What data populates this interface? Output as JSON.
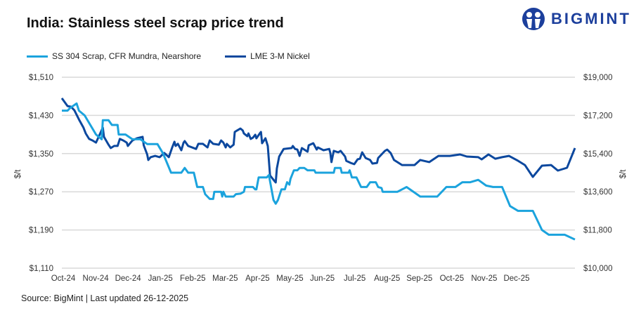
{
  "title": "India: Stainless steel scrap price trend",
  "logo": {
    "text": "BIGMINT"
  },
  "source": "Source: BigMint | Last updated 26-12-2025",
  "chart_data": {
    "type": "line",
    "title": "India: Stainless steel scrap price trend",
    "legend_position": "top-left",
    "grid": true,
    "x_range": [
      "2024-10-01",
      "2025-12-26"
    ],
    "x_tick_labels": [
      "Oct-24",
      "Nov-24",
      "Dec-24",
      "Jan-25",
      "Feb-25",
      "Mar-25",
      "Apr-25",
      "May-25",
      "Jun-25",
      "Jul-25",
      "Aug-25",
      "Sep-25",
      "Oct-25",
      "Nov-25",
      "Dec-25"
    ],
    "y_left": {
      "label": "$/t",
      "ylim": [
        1110,
        1510
      ],
      "ticks": [
        "$1,510",
        "$1,430",
        "$1,350",
        "$1,270",
        "$1,190",
        "$1,110"
      ]
    },
    "y_right": {
      "label": "$/t",
      "ylim": [
        10000,
        19000
      ],
      "ticks": [
        "$19,000",
        "$17,200",
        "$15,400",
        "$13,600",
        "$11,800",
        "$10,000"
      ]
    },
    "series": [
      {
        "name": "SS 304 Scrap, CFR Mundra, Nearshore",
        "axis": "left",
        "color": "#1ba3dd",
        "points": [
          [
            "2024-10-01",
            1440
          ],
          [
            "2024-10-06",
            1440
          ],
          [
            "2024-10-08",
            1445
          ],
          [
            "2024-10-14",
            1455
          ],
          [
            "2024-10-16",
            1440
          ],
          [
            "2024-10-21",
            1430
          ],
          [
            "2024-10-26",
            1410
          ],
          [
            "2024-10-31",
            1390
          ],
          [
            "2024-11-05",
            1380
          ],
          [
            "2024-11-06",
            1420
          ],
          [
            "2024-11-11",
            1420
          ],
          [
            "2024-11-14",
            1410
          ],
          [
            "2024-11-19",
            1410
          ],
          [
            "2024-11-20",
            1390
          ],
          [
            "2024-11-26",
            1390
          ],
          [
            "2024-12-02",
            1380
          ],
          [
            "2024-12-09",
            1380
          ],
          [
            "2024-12-15",
            1370
          ],
          [
            "2024-12-24",
            1370
          ],
          [
            "2024-12-29",
            1350
          ],
          [
            "2025-01-05",
            1310
          ],
          [
            "2025-01-14",
            1310
          ],
          [
            "2025-01-17",
            1320
          ],
          [
            "2025-01-20",
            1310
          ],
          [
            "2025-01-25",
            1310
          ],
          [
            "2025-01-28",
            1280
          ],
          [
            "2025-02-02",
            1280
          ],
          [
            "2025-02-04",
            1265
          ],
          [
            "2025-02-08",
            1255
          ],
          [
            "2025-02-11",
            1255
          ],
          [
            "2025-02-12",
            1270
          ],
          [
            "2025-02-18",
            1270
          ],
          [
            "2025-02-19",
            1260
          ],
          [
            "2025-02-20",
            1270
          ],
          [
            "2025-02-22",
            1260
          ],
          [
            "2025-03-01",
            1260
          ],
          [
            "2025-03-03",
            1265
          ],
          [
            "2025-03-07",
            1266
          ],
          [
            "2025-03-10",
            1270
          ],
          [
            "2025-03-11",
            1280
          ],
          [
            "2025-03-18",
            1280
          ],
          [
            "2025-03-20",
            1275
          ],
          [
            "2025-03-21",
            1275
          ],
          [
            "2025-03-23",
            1300
          ],
          [
            "2025-03-30",
            1300
          ],
          [
            "2025-04-01",
            1305
          ],
          [
            "2025-04-05",
            1253
          ],
          [
            "2025-04-07",
            1245
          ],
          [
            "2025-04-09",
            1253
          ],
          [
            "2025-04-12",
            1275
          ],
          [
            "2025-04-15",
            1275
          ],
          [
            "2025-04-17",
            1290
          ],
          [
            "2025-04-19",
            1285
          ],
          [
            "2025-04-20",
            1297
          ],
          [
            "2025-04-23",
            1315
          ],
          [
            "2025-04-26",
            1315
          ],
          [
            "2025-04-28",
            1320
          ],
          [
            "2025-05-02",
            1320
          ],
          [
            "2025-05-05",
            1315
          ],
          [
            "2025-05-11",
            1315
          ],
          [
            "2025-05-12",
            1310
          ],
          [
            "2025-05-28",
            1310
          ],
          [
            "2025-05-29",
            1320
          ],
          [
            "2025-06-03",
            1320
          ],
          [
            "2025-06-04",
            1310
          ],
          [
            "2025-06-10",
            1310
          ],
          [
            "2025-06-11",
            1315
          ],
          [
            "2025-06-13",
            1300
          ],
          [
            "2025-06-17",
            1300
          ],
          [
            "2025-06-21",
            1280
          ],
          [
            "2025-06-26",
            1280
          ],
          [
            "2025-06-29",
            1290
          ],
          [
            "2025-07-04",
            1290
          ],
          [
            "2025-07-06",
            1280
          ],
          [
            "2025-07-09",
            1278
          ],
          [
            "2025-07-10",
            1270
          ],
          [
            "2025-07-23",
            1270
          ],
          [
            "2025-07-31",
            1280
          ],
          [
            "2025-08-12",
            1260
          ],
          [
            "2025-08-27",
            1260
          ],
          [
            "2025-09-04",
            1280
          ],
          [
            "2025-09-12",
            1280
          ],
          [
            "2025-09-18",
            1290
          ],
          [
            "2025-09-25",
            1290
          ],
          [
            "2025-10-02",
            1295
          ],
          [
            "2025-10-09",
            1283
          ],
          [
            "2025-10-15",
            1280
          ],
          [
            "2025-10-23",
            1280
          ],
          [
            "2025-10-30",
            1240
          ],
          [
            "2025-11-06",
            1230
          ],
          [
            "2025-11-19",
            1230
          ],
          [
            "2025-11-27",
            1190
          ],
          [
            "2025-12-03",
            1180
          ],
          [
            "2025-12-17",
            1180
          ],
          [
            "2025-12-26",
            1170
          ]
        ]
      },
      {
        "name": "LME 3-M Nickel",
        "axis": "right",
        "color": "#0c489e",
        "points": [
          [
            "2024-10-01",
            18010
          ],
          [
            "2024-10-06",
            17640
          ],
          [
            "2024-10-09",
            17610
          ],
          [
            "2024-10-12",
            17440
          ],
          [
            "2024-10-16",
            17010
          ],
          [
            "2024-10-20",
            16620
          ],
          [
            "2024-10-22",
            16350
          ],
          [
            "2024-10-25",
            16090
          ],
          [
            "2024-10-28",
            16020
          ],
          [
            "2024-10-31",
            15920
          ],
          [
            "2024-11-06",
            16620
          ],
          [
            "2024-11-07",
            16190
          ],
          [
            "2024-11-11",
            15820
          ],
          [
            "2024-11-13",
            15660
          ],
          [
            "2024-11-16",
            15760
          ],
          [
            "2024-11-19",
            15760
          ],
          [
            "2024-11-21",
            16090
          ],
          [
            "2024-11-24",
            16020
          ],
          [
            "2024-11-27",
            15920
          ],
          [
            "2024-11-28",
            15760
          ],
          [
            "2024-12-02",
            16020
          ],
          [
            "2024-12-06",
            16120
          ],
          [
            "2024-12-11",
            16190
          ],
          [
            "2024-12-12",
            15790
          ],
          [
            "2024-12-15",
            15360
          ],
          [
            "2024-12-16",
            15100
          ],
          [
            "2024-12-18",
            15230
          ],
          [
            "2024-12-22",
            15290
          ],
          [
            "2024-12-26",
            15230
          ],
          [
            "2024-12-30",
            15430
          ],
          [
            "2025-01-03",
            15230
          ],
          [
            "2025-01-06",
            15690
          ],
          [
            "2025-01-08",
            15960
          ],
          [
            "2025-01-09",
            15760
          ],
          [
            "2025-01-11",
            15860
          ],
          [
            "2025-01-14",
            15560
          ],
          [
            "2025-01-16",
            15920
          ],
          [
            "2025-01-17",
            15990
          ],
          [
            "2025-01-20",
            15760
          ],
          [
            "2025-01-27",
            15620
          ],
          [
            "2025-01-29",
            15860
          ],
          [
            "2025-02-02",
            15860
          ],
          [
            "2025-02-06",
            15690
          ],
          [
            "2025-02-08",
            16020
          ],
          [
            "2025-02-11",
            15860
          ],
          [
            "2025-02-16",
            15820
          ],
          [
            "2025-02-18",
            16020
          ],
          [
            "2025-02-20",
            15920
          ],
          [
            "2025-02-22",
            15690
          ],
          [
            "2025-02-23",
            15860
          ],
          [
            "2025-02-26",
            15690
          ],
          [
            "2025-03-01",
            15820
          ],
          [
            "2025-03-02",
            16420
          ],
          [
            "2025-03-04",
            16490
          ],
          [
            "2025-03-07",
            16580
          ],
          [
            "2025-03-09",
            16490
          ],
          [
            "2025-03-10",
            16350
          ],
          [
            "2025-03-13",
            16220
          ],
          [
            "2025-03-14",
            16350
          ],
          [
            "2025-03-16",
            16090
          ],
          [
            "2025-03-18",
            16150
          ],
          [
            "2025-03-20",
            16290
          ],
          [
            "2025-03-21",
            16120
          ],
          [
            "2025-03-24",
            16350
          ],
          [
            "2025-03-25",
            16420
          ],
          [
            "2025-03-26",
            15890
          ],
          [
            "2025-03-29",
            16120
          ],
          [
            "2025-03-31",
            15760
          ],
          [
            "2025-04-02",
            14370
          ],
          [
            "2025-04-06",
            14100
          ],
          [
            "2025-04-07",
            14040
          ],
          [
            "2025-04-08",
            14700
          ],
          [
            "2025-04-10",
            15260
          ],
          [
            "2025-04-14",
            15620
          ],
          [
            "2025-04-21",
            15660
          ],
          [
            "2025-04-22",
            15760
          ],
          [
            "2025-04-24",
            15620
          ],
          [
            "2025-04-26",
            15590
          ],
          [
            "2025-04-28",
            15290
          ],
          [
            "2025-04-30",
            15660
          ],
          [
            "2025-05-05",
            15490
          ],
          [
            "2025-05-06",
            15790
          ],
          [
            "2025-05-10",
            15890
          ],
          [
            "2025-05-13",
            15590
          ],
          [
            "2025-05-14",
            15690
          ],
          [
            "2025-05-19",
            15560
          ],
          [
            "2025-05-24",
            15620
          ],
          [
            "2025-05-25",
            15430
          ],
          [
            "2025-05-26",
            15000
          ],
          [
            "2025-05-27",
            15260
          ],
          [
            "2025-05-28",
            15530
          ],
          [
            "2025-06-01",
            15460
          ],
          [
            "2025-06-03",
            15530
          ],
          [
            "2025-06-07",
            15260
          ],
          [
            "2025-06-08",
            15060
          ],
          [
            "2025-06-12",
            14960
          ],
          [
            "2025-06-15",
            14900
          ],
          [
            "2025-06-18",
            15130
          ],
          [
            "2025-06-20",
            15160
          ],
          [
            "2025-06-22",
            15460
          ],
          [
            "2025-06-25",
            15190
          ],
          [
            "2025-06-29",
            15100
          ],
          [
            "2025-07-01",
            14930
          ],
          [
            "2025-07-05",
            14960
          ],
          [
            "2025-07-06",
            15190
          ],
          [
            "2025-07-12",
            15530
          ],
          [
            "2025-07-14",
            15590
          ],
          [
            "2025-07-17",
            15430
          ],
          [
            "2025-07-20",
            15100
          ],
          [
            "2025-07-27",
            14860
          ],
          [
            "2025-08-07",
            14860
          ],
          [
            "2025-08-12",
            15100
          ],
          [
            "2025-08-20",
            15000
          ],
          [
            "2025-08-28",
            15290
          ],
          [
            "2025-09-07",
            15290
          ],
          [
            "2025-09-16",
            15360
          ],
          [
            "2025-09-22",
            15260
          ],
          [
            "2025-10-02",
            15230
          ],
          [
            "2025-10-05",
            15130
          ],
          [
            "2025-10-11",
            15360
          ],
          [
            "2025-10-17",
            15160
          ],
          [
            "2025-10-23",
            15230
          ],
          [
            "2025-10-29",
            15290
          ],
          [
            "2025-11-06",
            15060
          ],
          [
            "2025-11-12",
            14860
          ],
          [
            "2025-11-19",
            14300
          ],
          [
            "2025-11-27",
            14830
          ],
          [
            "2025-12-05",
            14860
          ],
          [
            "2025-12-11",
            14600
          ],
          [
            "2025-12-19",
            14730
          ],
          [
            "2025-12-26",
            15660
          ]
        ]
      }
    ]
  }
}
